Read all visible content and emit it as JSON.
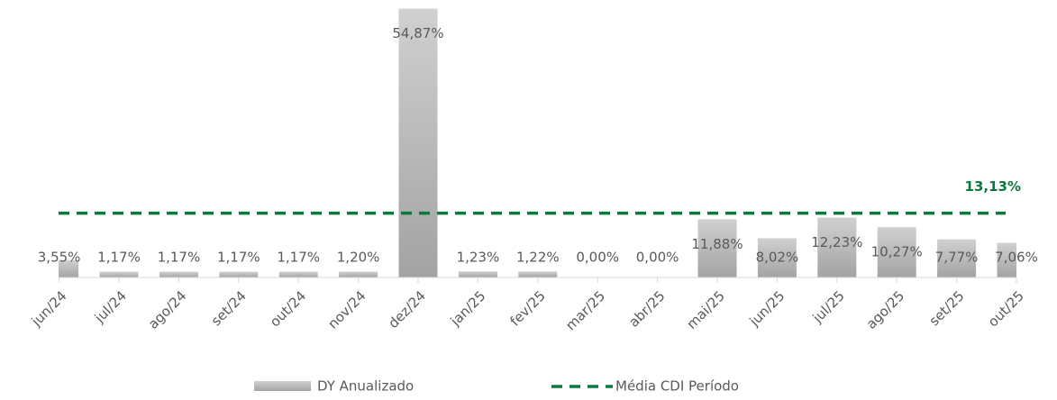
{
  "chart_data": {
    "type": "bar",
    "categories": [
      "jun/24",
      "jul/24",
      "ago/24",
      "set/24",
      "out/24",
      "nov/24",
      "dez/24",
      "jan/25",
      "fev/25",
      "mar/25",
      "abr/25",
      "mai/25",
      "jun/25",
      "jul/25",
      "ago/25",
      "set/25",
      "out/25"
    ],
    "series": [
      {
        "name": "DY Anualizado",
        "color": "#b0b0b0",
        "values": [
          3.55,
          1.17,
          1.17,
          1.17,
          1.17,
          1.2,
          54.87,
          1.23,
          1.22,
          0.0,
          0.0,
          11.88,
          8.02,
          12.23,
          10.27,
          7.77,
          7.06
        ],
        "value_labels": [
          "3,55%",
          "1,17%",
          "1,17%",
          "1,17%",
          "1,17%",
          "1,20%",
          "54,87%",
          "1,23%",
          "1,22%",
          "0,00%",
          "0,00%",
          "11,88%",
          "8,02%",
          "12,23%",
          "10,27%",
          "7,77%",
          "7,06%"
        ]
      }
    ],
    "reference_line": {
      "name": "Média CDI Período",
      "value": 13.13,
      "value_label": "13,13%",
      "color": "#0a7a3c"
    },
    "ylim": [
      0,
      55
    ]
  }
}
